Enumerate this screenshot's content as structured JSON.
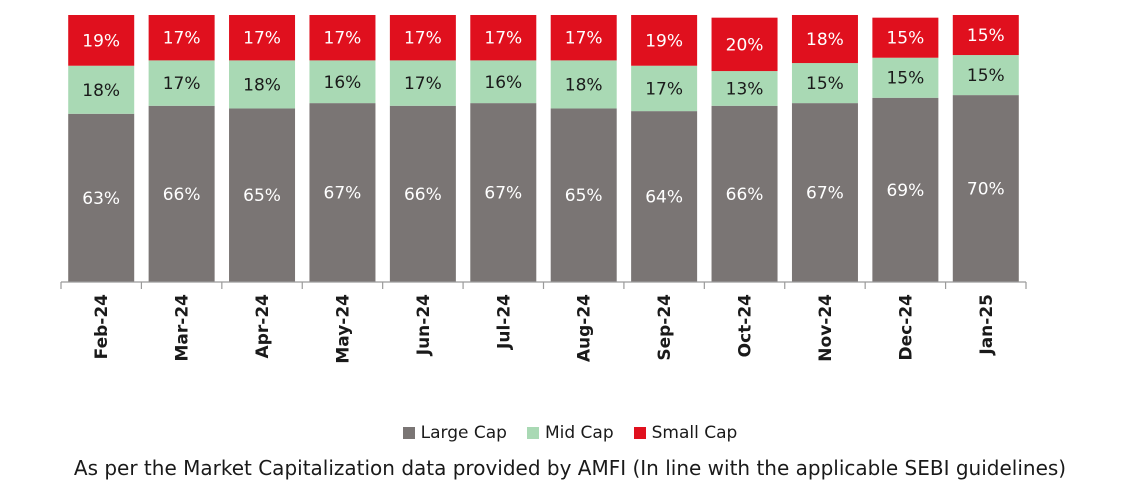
{
  "chart_data": {
    "type": "bar",
    "stacked": true,
    "categories": [
      "Feb-24",
      "Mar-24",
      "Apr-24",
      "May-24",
      "Jun-24",
      "Jul-24",
      "Aug-24",
      "Sep-24",
      "Oct-24",
      "Nov-24",
      "Dec-24",
      "Jan-25"
    ],
    "series": [
      {
        "name": "Large Cap",
        "values": [
          63,
          66,
          65,
          67,
          66,
          67,
          65,
          64,
          66,
          67,
          69,
          70
        ],
        "color": "#7a7574",
        "label_color": "#ffffff"
      },
      {
        "name": "Mid Cap",
        "values": [
          18,
          17,
          18,
          16,
          17,
          16,
          18,
          17,
          13,
          15,
          15,
          15
        ],
        "color": "#a9d9b4",
        "label_color": "#1a1a1a"
      },
      {
        "name": "Small Cap",
        "values": [
          19,
          17,
          17,
          17,
          17,
          17,
          17,
          19,
          20,
          18,
          15,
          15
        ],
        "color": "#e0101e",
        "label_color": "#ffffff"
      }
    ],
    "label_suffix": "%",
    "legend_position": "bottom",
    "grid": false,
    "xtick_rotation": -90
  },
  "footnote": "As per the Market Capitalization data provided by AMFI (In line with the applicable SEBI guidelines)"
}
